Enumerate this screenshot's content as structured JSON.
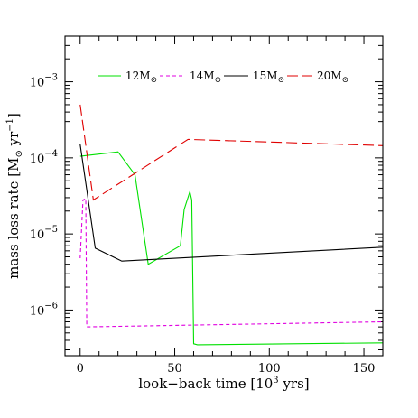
{
  "chart_data": {
    "type": "line",
    "xlabel": "look−back time [10",
    "xlabel_sup": "3",
    "xlabel_end": " yrs]",
    "ylabel": "mass loss rate  [M",
    "ylabel_sun": "⊙",
    "ylabel_mid": " yr",
    "ylabel_sup": "−1",
    "ylabel_end": "]",
    "xlim": [
      -8,
      160
    ],
    "ylim_log10": [
      -6.6,
      -2.4
    ],
    "yscale": "log",
    "x_major_ticks": [
      0,
      50,
      100,
      150
    ],
    "x_tick_labels": [
      "0",
      "50",
      "100",
      "150"
    ],
    "y_major_exponents": [
      -6,
      -5,
      -4,
      -3
    ],
    "y_tick_base": "10",
    "legend_placement": "top",
    "series": [
      {
        "name": "12M",
        "name_sub": "⊙",
        "color": "#00e000",
        "dash": "solid",
        "points": [
          [
            0,
            0.000105
          ],
          [
            20,
            0.00012
          ],
          [
            29,
            6e-05
          ],
          [
            36,
            4e-06
          ],
          [
            53,
            7e-06
          ],
          [
            55,
            2.1e-05
          ],
          [
            58,
            3.6e-05
          ],
          [
            59,
            2.8e-05
          ],
          [
            60,
            3.6e-07
          ],
          [
            62,
            3.5e-07
          ],
          [
            160,
            3.7e-07
          ]
        ]
      },
      {
        "name": "14M",
        "name_sub": "⊙",
        "color": "#e000e0",
        "dash": "4,3",
        "points": [
          [
            0,
            4.8e-06
          ],
          [
            1.5,
            2.8e-05
          ],
          [
            3,
            2.9e-05
          ],
          [
            3.5,
            6e-07
          ],
          [
            160,
            7e-07
          ]
        ]
      },
      {
        "name": "15M",
        "name_sub": "⊙",
        "color": "#000000",
        "dash": "solid",
        "points": [
          [
            0,
            0.00015
          ],
          [
            8,
            6.5e-06
          ],
          [
            22,
            4.4e-06
          ],
          [
            160,
            6.7e-06
          ]
        ]
      },
      {
        "name": "20M",
        "name_sub": "⊙",
        "color": "#e00000",
        "dash": "12,5",
        "points": [
          [
            0,
            0.0005
          ],
          [
            7,
            2.8e-05
          ],
          [
            57,
            0.000175
          ],
          [
            160,
            0.000145
          ]
        ]
      }
    ]
  }
}
